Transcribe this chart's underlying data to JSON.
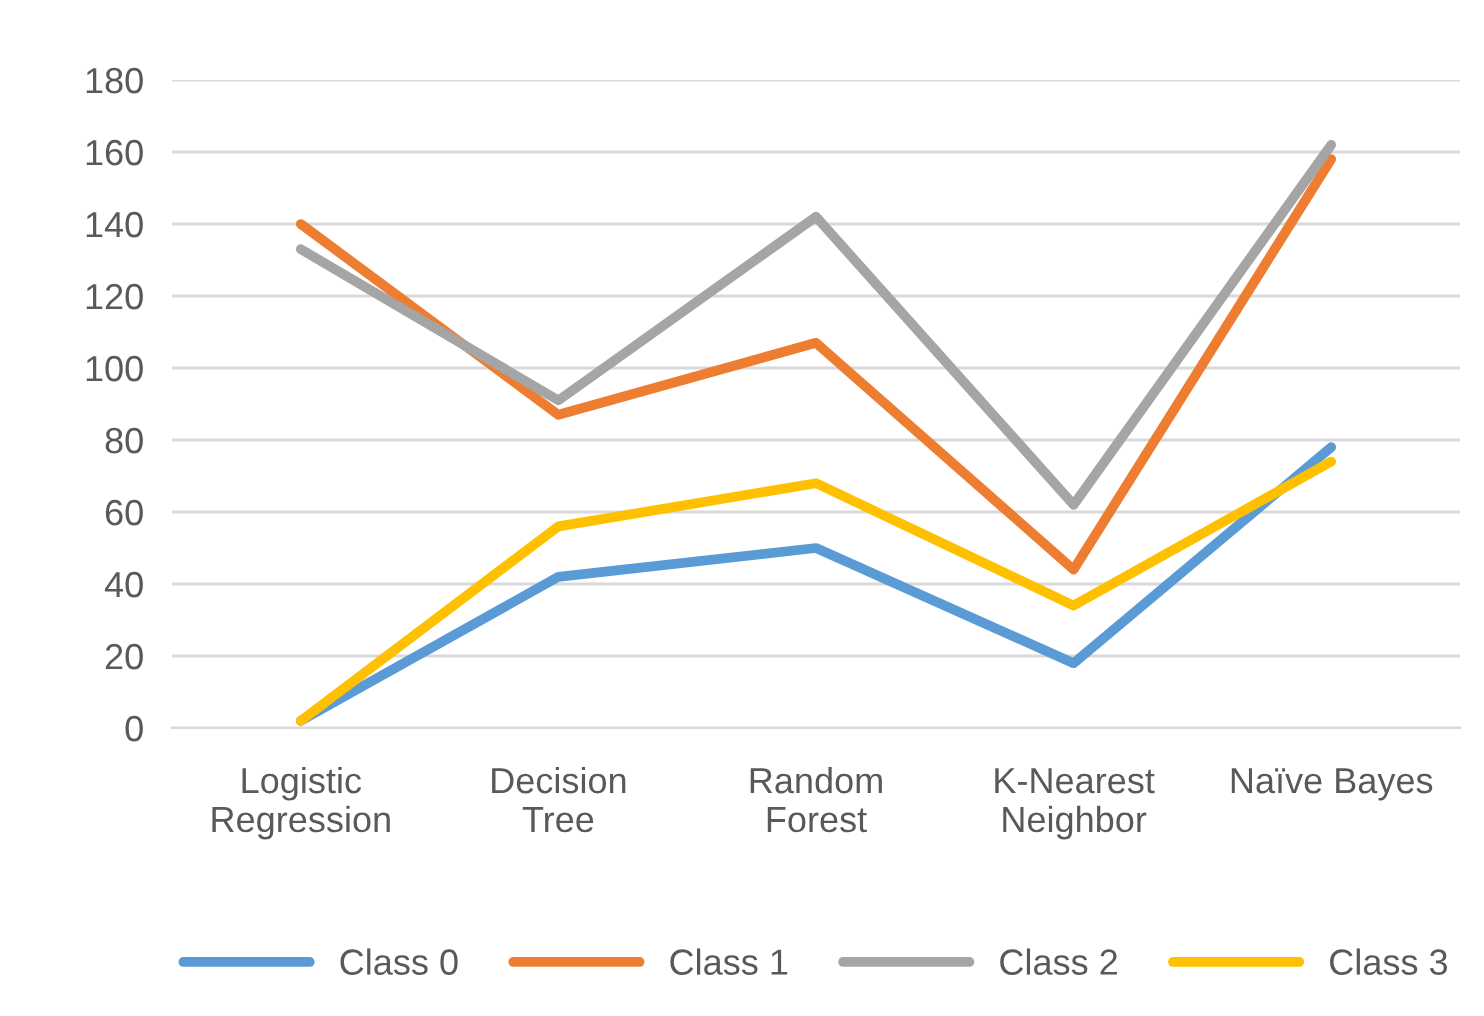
{
  "chart_data": {
    "type": "line",
    "categories": [
      "Logistic\nRegression",
      "Decision\nTree",
      "Random\nForest",
      "K-Nearest\nNeighbor",
      "Naïve Bayes"
    ],
    "series": [
      {
        "name": "Class 0",
        "color": "#5b9bd5",
        "values": [
          2,
          42,
          50,
          18,
          78
        ]
      },
      {
        "name": "Class 1",
        "color": "#ed7d31",
        "values": [
          140,
          87,
          107,
          44,
          158
        ]
      },
      {
        "name": "Class 2",
        "color": "#a5a5a5",
        "values": [
          133,
          91,
          142,
          62,
          162
        ]
      },
      {
        "name": "Class 3",
        "color": "#ffc000",
        "values": [
          2,
          56,
          68,
          34,
          74
        ]
      }
    ],
    "ylim": [
      0,
      180
    ],
    "yticks": [
      0,
      20,
      40,
      60,
      80,
      100,
      120,
      140,
      160,
      180
    ],
    "grid": "y",
    "legend": "bottom",
    "marker": "none",
    "line_style": "solid"
  }
}
